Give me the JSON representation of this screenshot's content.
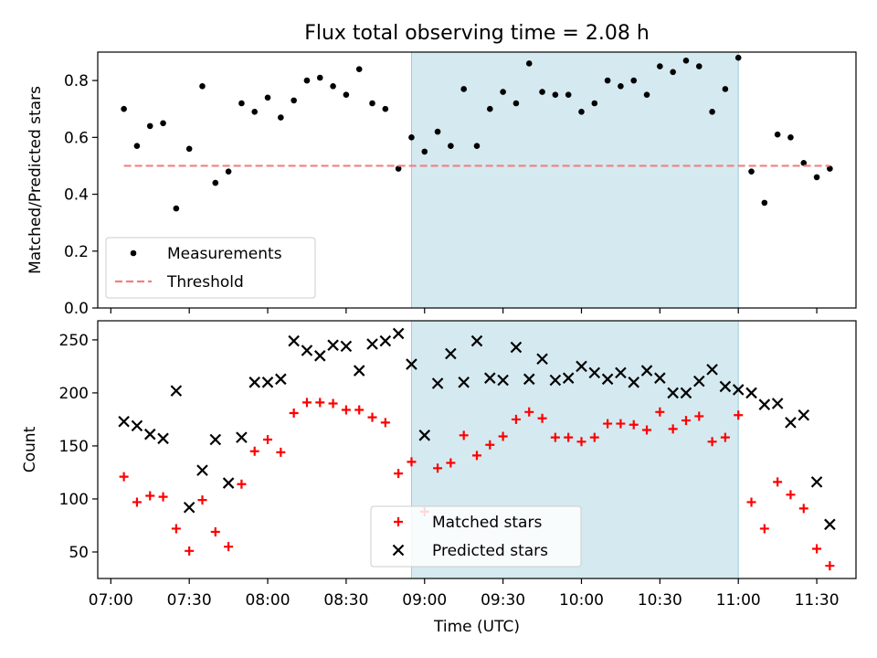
{
  "title": "Flux total observing time = 2.08 h",
  "chart_data": [
    {
      "type": "scatter",
      "ylabel": "Matched/Predicted stars",
      "ylim": [
        0,
        0.9
      ],
      "yticks": [
        0.0,
        0.2,
        0.4,
        0.6,
        0.8
      ],
      "ytick_labels": [
        "0.0",
        "0.2",
        "0.4",
        "0.6",
        "0.8"
      ],
      "xlim": [
        "06:55",
        "11:45"
      ],
      "shaded_span": [
        "08:55",
        "11:00"
      ],
      "shade_color": "#d4eaf0",
      "legend_position": "lower-left",
      "series": [
        {
          "name": "Measurements",
          "marker": "dot",
          "color": "#000000",
          "x": [
            "07:05",
            "07:10",
            "07:15",
            "07:20",
            "07:25",
            "07:30",
            "07:35",
            "07:40",
            "07:45",
            "07:50",
            "07:55",
            "08:00",
            "08:05",
            "08:10",
            "08:15",
            "08:20",
            "08:25",
            "08:30",
            "08:35",
            "08:40",
            "08:45",
            "08:50",
            "08:55",
            "09:00",
            "09:05",
            "09:10",
            "09:15",
            "09:20",
            "09:25",
            "09:30",
            "09:35",
            "09:40",
            "09:45",
            "09:50",
            "09:55",
            "10:00",
            "10:05",
            "10:10",
            "10:15",
            "10:20",
            "10:25",
            "10:30",
            "10:35",
            "10:40",
            "10:45",
            "10:50",
            "10:55",
            "11:00",
            "11:05",
            "11:10",
            "11:15",
            "11:20",
            "11:25",
            "11:30",
            "11:35"
          ],
          "y": [
            0.7,
            0.57,
            0.64,
            0.65,
            0.35,
            0.56,
            0.78,
            0.44,
            0.48,
            0.72,
            0.69,
            0.74,
            0.67,
            0.73,
            0.8,
            0.81,
            0.78,
            0.75,
            0.84,
            0.72,
            0.7,
            0.49,
            0.6,
            0.55,
            0.62,
            0.57,
            0.77,
            0.57,
            0.7,
            0.76,
            0.72,
            0.86,
            0.76,
            0.75,
            0.75,
            0.69,
            0.72,
            0.8,
            0.78,
            0.8,
            0.75,
            0.85,
            0.83,
            0.87,
            0.85,
            0.69,
            0.77,
            0.88,
            0.48,
            0.37,
            0.61,
            0.6,
            0.51,
            0.46,
            0.49
          ]
        },
        {
          "name": "Threshold",
          "marker": "dashed-line",
          "color": "#f08080",
          "x": [
            "07:05",
            "11:35"
          ],
          "y": [
            0.5,
            0.5
          ]
        }
      ]
    },
    {
      "type": "scatter",
      "xlabel": "Time (UTC)",
      "ylabel": "Count",
      "ylim": [
        25,
        268
      ],
      "yticks": [
        50,
        100,
        150,
        200,
        250
      ],
      "ytick_labels": [
        "50",
        "100",
        "150",
        "200",
        "250"
      ],
      "xlim": [
        "06:55",
        "11:45"
      ],
      "xticks": [
        "07:00",
        "07:30",
        "08:00",
        "08:30",
        "09:00",
        "09:30",
        "10:00",
        "10:30",
        "11:00",
        "11:30"
      ],
      "xtick_labels": [
        "07:00",
        "07:30",
        "08:00",
        "08:30",
        "09:00",
        "09:30",
        "10:00",
        "10:30",
        "11:00",
        "11:30"
      ],
      "shaded_span": [
        "08:55",
        "11:00"
      ],
      "shade_color": "#d4eaf0",
      "legend_position": "lower-center",
      "series": [
        {
          "name": "Matched stars",
          "marker": "plus",
          "color": "#ff0000",
          "x": [
            "07:05",
            "07:10",
            "07:15",
            "07:20",
            "07:25",
            "07:30",
            "07:35",
            "07:40",
            "07:45",
            "07:50",
            "07:55",
            "08:00",
            "08:05",
            "08:10",
            "08:15",
            "08:20",
            "08:25",
            "08:30",
            "08:35",
            "08:40",
            "08:45",
            "08:50",
            "08:55",
            "09:00",
            "09:05",
            "09:10",
            "09:15",
            "09:20",
            "09:25",
            "09:30",
            "09:35",
            "09:40",
            "09:45",
            "09:50",
            "09:55",
            "10:00",
            "10:05",
            "10:10",
            "10:15",
            "10:20",
            "10:25",
            "10:30",
            "10:35",
            "10:40",
            "10:45",
            "10:50",
            "10:55",
            "11:00",
            "11:05",
            "11:10",
            "11:15",
            "11:20",
            "11:25",
            "11:30",
            "11:35"
          ],
          "y": [
            121,
            97,
            103,
            102,
            72,
            51,
            99,
            69,
            55,
            114,
            145,
            156,
            144,
            181,
            191,
            191,
            190,
            184,
            184,
            177,
            172,
            124,
            135,
            88,
            129,
            134,
            160,
            141,
            151,
            159,
            175,
            182,
            176,
            158,
            158,
            154,
            158,
            171,
            171,
            170,
            165,
            182,
            166,
            174,
            178,
            154,
            158,
            179,
            97,
            72,
            116,
            104,
            91,
            53,
            37
          ]
        },
        {
          "name": "Predicted stars",
          "marker": "x",
          "color": "#000000",
          "x": [
            "07:05",
            "07:10",
            "07:15",
            "07:20",
            "07:25",
            "07:30",
            "07:35",
            "07:40",
            "07:45",
            "07:50",
            "07:55",
            "08:00",
            "08:05",
            "08:10",
            "08:15",
            "08:20",
            "08:25",
            "08:30",
            "08:35",
            "08:40",
            "08:45",
            "08:50",
            "08:55",
            "09:00",
            "09:05",
            "09:10",
            "09:15",
            "09:20",
            "09:25",
            "09:30",
            "09:35",
            "09:40",
            "09:45",
            "09:50",
            "09:55",
            "10:00",
            "10:05",
            "10:10",
            "10:15",
            "10:20",
            "10:25",
            "10:30",
            "10:35",
            "10:40",
            "10:45",
            "10:50",
            "10:55",
            "11:00",
            "11:05",
            "11:10",
            "11:15",
            "11:20",
            "11:25",
            "11:30",
            "11:35"
          ],
          "y": [
            173,
            169,
            161,
            157,
            202,
            92,
            127,
            156,
            115,
            158,
            210,
            210,
            213,
            249,
            240,
            235,
            245,
            244,
            221,
            246,
            249,
            256,
            227,
            160,
            209,
            237,
            210,
            249,
            214,
            212,
            243,
            213,
            232,
            212,
            214,
            225,
            219,
            213,
            219,
            210,
            221,
            214,
            200,
            200,
            211,
            222,
            206,
            203,
            200,
            189,
            190,
            172,
            179,
            116,
            76
          ]
        }
      ]
    }
  ]
}
